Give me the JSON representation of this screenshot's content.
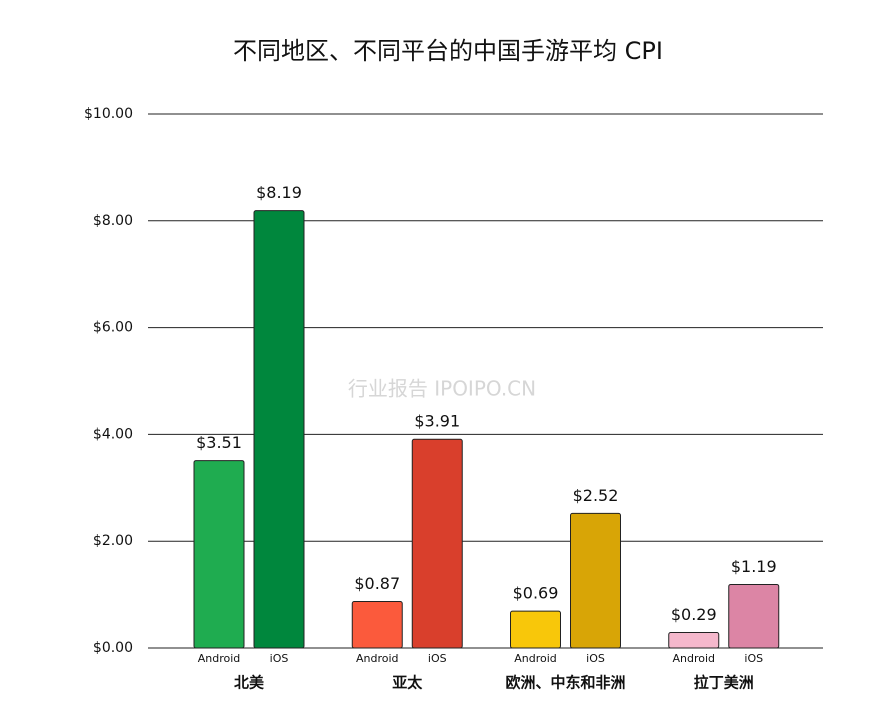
{
  "chart_data": {
    "type": "bar",
    "title": "不同地区、不同平台的中国手游平均 CPI",
    "watermark": "行业报告 IPOIPO.CN",
    "categories": [
      "北美",
      "亚太",
      "欧洲、中东和非洲",
      "拉丁美洲"
    ],
    "series": [
      {
        "name": "Android",
        "colors": [
          "#1fac50",
          "#fb5a3c",
          "#f8c70a",
          "#f5b8cc"
        ],
        "values": [
          3.51,
          0.87,
          0.69,
          0.29
        ],
        "value_labels": [
          "$3.51",
          "$0.87",
          "$0.69",
          "$0.29"
        ]
      },
      {
        "name": "iOS",
        "colors": [
          "#00873d",
          "#d93f2c",
          "#d8a506",
          "#dc85a5"
        ],
        "values": [
          8.19,
          3.91,
          2.52,
          1.19
        ],
        "value_labels": [
          "$8.19",
          "$3.91",
          "$2.52",
          "$1.19"
        ]
      }
    ],
    "ylim": [
      0,
      10
    ],
    "yticks": [
      {
        "value": 0,
        "label": "$0.00"
      },
      {
        "value": 2,
        "label": "$2.00"
      },
      {
        "value": 4,
        "label": "$4.00"
      },
      {
        "value": 6,
        "label": "$6.00"
      },
      {
        "value": 8,
        "label": "$8.00"
      },
      {
        "value": 10,
        "label": "$10.00"
      }
    ],
    "grid": true
  }
}
